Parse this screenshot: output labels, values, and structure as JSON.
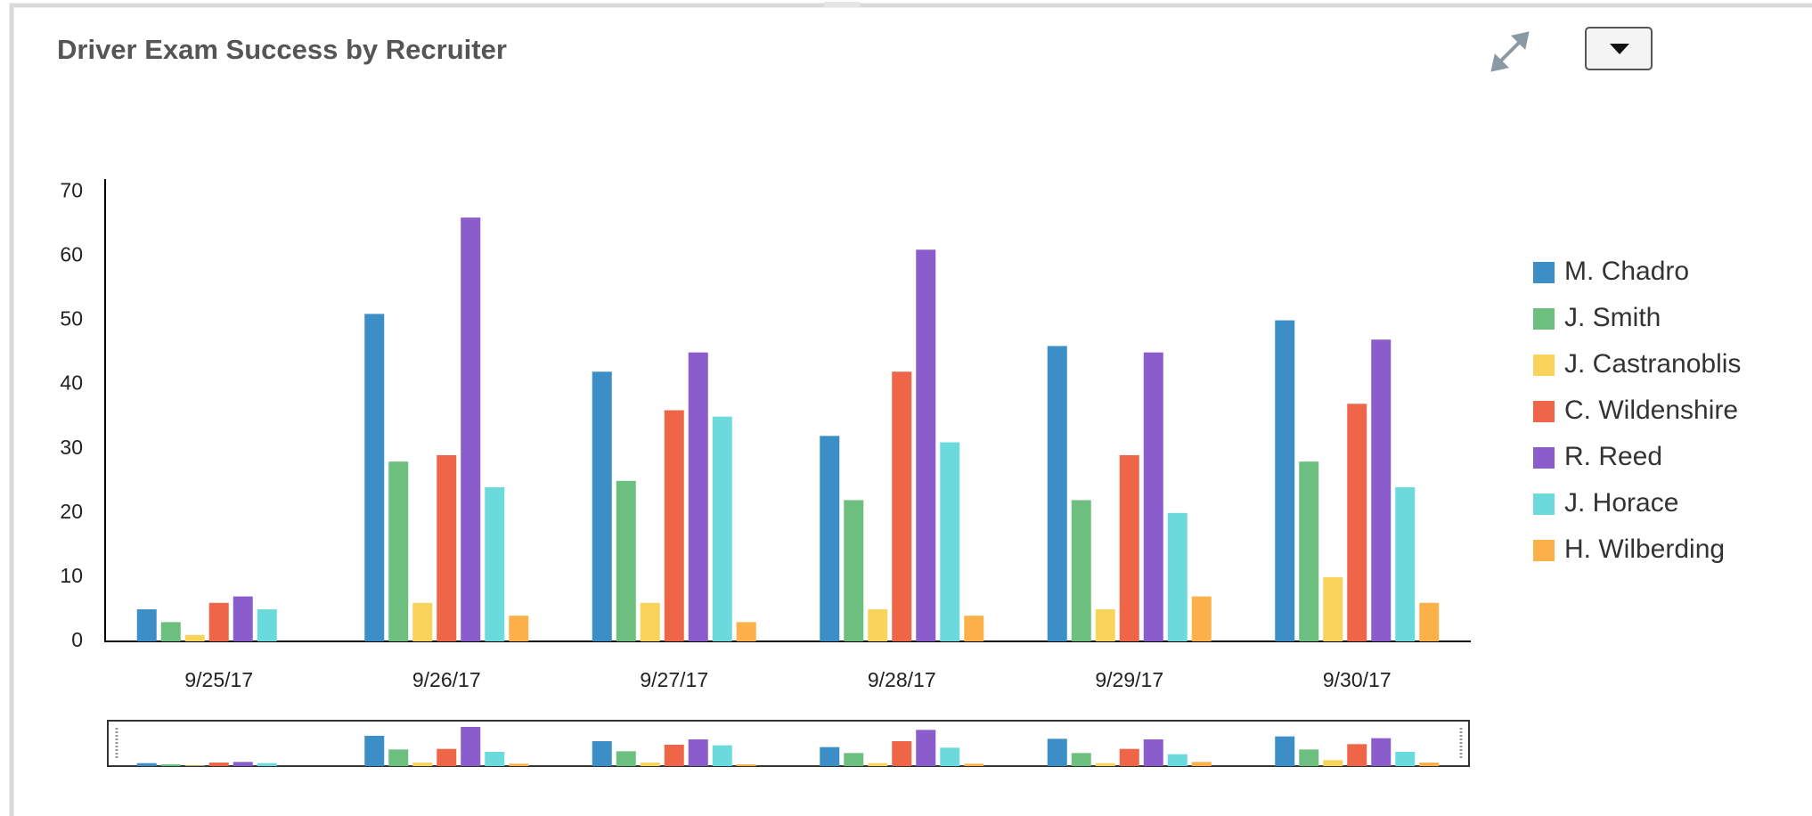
{
  "chart_data": {
    "type": "bar",
    "title": "Driver Exam Success by Recruiter",
    "categories": [
      "9/25/17",
      "9/26/17",
      "9/27/17",
      "9/28/17",
      "9/29/17",
      "9/30/17"
    ],
    "series": [
      {
        "name": "M. Chadro",
        "color": "#3c8fc6",
        "values": [
          5,
          51,
          42,
          32,
          46,
          50
        ]
      },
      {
        "name": "J. Smith",
        "color": "#6cbf7f",
        "values": [
          3,
          28,
          25,
          22,
          22,
          28
        ]
      },
      {
        "name": "J. Castranoblis",
        "color": "#f9d45c",
        "values": [
          1,
          6,
          6,
          5,
          5,
          10
        ]
      },
      {
        "name": "C. Wildenshire",
        "color": "#ee6548",
        "values": [
          6,
          29,
          36,
          42,
          29,
          37
        ]
      },
      {
        "name": "R. Reed",
        "color": "#8a5ccc",
        "values": [
          7,
          66,
          45,
          61,
          45,
          47
        ]
      },
      {
        "name": "J. Horace",
        "color": "#6adadc",
        "values": [
          5,
          24,
          35,
          31,
          20,
          24
        ]
      },
      {
        "name": "H. Wilberding",
        "color": "#fbb04a",
        "values": [
          0,
          4,
          3,
          4,
          7,
          6
        ]
      }
    ],
    "ylim": [
      0,
      72
    ],
    "yticks": [
      0,
      10,
      20,
      30,
      40,
      50,
      60,
      70
    ],
    "grid": false,
    "legend": "right"
  }
}
